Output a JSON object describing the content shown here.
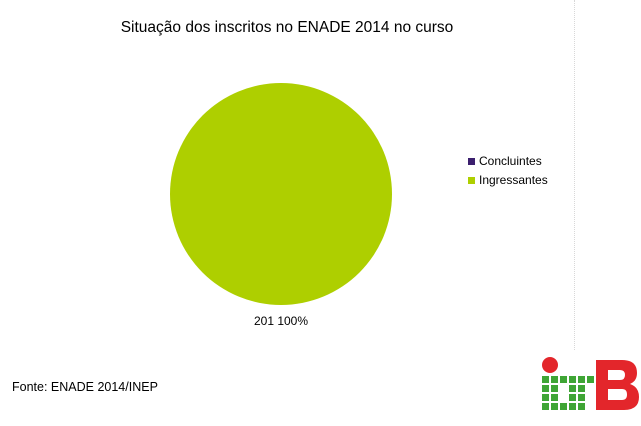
{
  "chart_data": {
    "type": "pie",
    "title": "Situação dos inscritos no ENADE 2014 no curso",
    "series": [
      {
        "name": "Concluintes",
        "value": 0,
        "color": "#3b1f6e"
      },
      {
        "name": "Ingressantes",
        "value": 201,
        "color": "#aecf00"
      }
    ],
    "data_labels": [
      "201 100%"
    ],
    "legend_position": "right"
  },
  "footnote": "Fonte: ENADE 2014/INEP",
  "logo": {
    "text": "IFB",
    "colors": {
      "red": "#e3262b",
      "green": "#3fa535"
    }
  }
}
